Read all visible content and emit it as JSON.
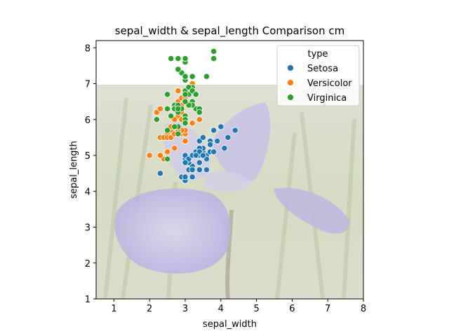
{
  "chart_data": {
    "type": "scatter",
    "title": "sepal_width & sepal_length Comparison cm",
    "xlabel": "sepal_width",
    "ylabel": "sepal_length",
    "xlim": [
      0.5,
      8
    ],
    "ylim": [
      1,
      8.2
    ],
    "xticks": [
      "1",
      "2",
      "3",
      "4",
      "5",
      "6",
      "7",
      "8"
    ],
    "yticks": [
      "1",
      "2",
      "3",
      "4",
      "5",
      "6",
      "7",
      "8"
    ],
    "grid": false,
    "background_image": "iris-flower-photo",
    "legend": {
      "title": "type",
      "placement": "top-right"
    },
    "series": [
      {
        "name": "Setosa",
        "color": "#1f77b4",
        "points": [
          [
            3.5,
            5.1
          ],
          [
            3.0,
            4.9
          ],
          [
            3.2,
            4.7
          ],
          [
            3.1,
            4.6
          ],
          [
            3.6,
            5.0
          ],
          [
            3.9,
            5.4
          ],
          [
            3.4,
            4.6
          ],
          [
            3.4,
            5.0
          ],
          [
            2.9,
            4.4
          ],
          [
            3.1,
            4.9
          ],
          [
            3.7,
            5.4
          ],
          [
            3.4,
            4.8
          ],
          [
            3.0,
            4.8
          ],
          [
            3.0,
            4.3
          ],
          [
            4.0,
            5.8
          ],
          [
            4.4,
            5.7
          ],
          [
            3.9,
            5.4
          ],
          [
            3.5,
            5.1
          ],
          [
            3.8,
            5.7
          ],
          [
            3.8,
            5.1
          ],
          [
            3.4,
            5.4
          ],
          [
            3.7,
            5.1
          ],
          [
            3.6,
            4.6
          ],
          [
            3.3,
            5.1
          ],
          [
            3.4,
            4.8
          ],
          [
            3.0,
            5.0
          ],
          [
            3.4,
            5.0
          ],
          [
            3.5,
            5.2
          ],
          [
            3.4,
            5.2
          ],
          [
            3.2,
            4.7
          ],
          [
            3.1,
            4.8
          ],
          [
            3.4,
            5.4
          ],
          [
            4.1,
            5.2
          ],
          [
            4.2,
            5.5
          ],
          [
            3.1,
            4.9
          ],
          [
            3.2,
            5.0
          ],
          [
            3.5,
            5.5
          ],
          [
            3.6,
            4.9
          ],
          [
            3.0,
            4.4
          ],
          [
            3.4,
            5.1
          ],
          [
            3.5,
            5.0
          ],
          [
            2.3,
            4.5
          ],
          [
            3.2,
            4.4
          ],
          [
            3.5,
            5.0
          ],
          [
            3.8,
            5.1
          ],
          [
            3.0,
            4.8
          ],
          [
            3.8,
            5.1
          ],
          [
            3.2,
            4.6
          ],
          [
            3.7,
            5.3
          ],
          [
            3.3,
            5.0
          ]
        ]
      },
      {
        "name": "Versicolor",
        "color": "#ff7f0e",
        "points": [
          [
            3.2,
            7.0
          ],
          [
            3.2,
            6.4
          ],
          [
            3.1,
            6.9
          ],
          [
            2.3,
            5.5
          ],
          [
            2.8,
            6.5
          ],
          [
            2.8,
            5.7
          ],
          [
            3.3,
            6.3
          ],
          [
            2.4,
            4.9
          ],
          [
            2.9,
            6.6
          ],
          [
            2.7,
            5.2
          ],
          [
            2.0,
            5.0
          ],
          [
            3.0,
            5.9
          ],
          [
            2.2,
            6.0
          ],
          [
            2.9,
            6.1
          ],
          [
            2.9,
            5.6
          ],
          [
            3.1,
            6.7
          ],
          [
            3.0,
            5.6
          ],
          [
            2.7,
            5.8
          ],
          [
            2.2,
            6.2
          ],
          [
            2.5,
            5.6
          ],
          [
            3.2,
            5.9
          ],
          [
            2.8,
            6.1
          ],
          [
            2.5,
            6.3
          ],
          [
            2.8,
            6.1
          ],
          [
            2.9,
            6.4
          ],
          [
            3.0,
            6.6
          ],
          [
            2.8,
            6.8
          ],
          [
            3.0,
            6.7
          ],
          [
            2.9,
            6.0
          ],
          [
            2.6,
            5.7
          ],
          [
            2.4,
            5.5
          ],
          [
            2.4,
            5.5
          ],
          [
            2.7,
            5.8
          ],
          [
            2.7,
            6.0
          ],
          [
            3.0,
            5.4
          ],
          [
            3.4,
            6.0
          ],
          [
            3.1,
            6.7
          ],
          [
            2.3,
            6.3
          ],
          [
            3.0,
            5.6
          ],
          [
            2.5,
            5.5
          ],
          [
            2.6,
            5.5
          ],
          [
            3.0,
            6.1
          ],
          [
            2.6,
            5.8
          ],
          [
            2.3,
            5.0
          ],
          [
            2.7,
            5.6
          ],
          [
            3.0,
            5.7
          ],
          [
            2.9,
            5.7
          ],
          [
            2.9,
            6.2
          ],
          [
            2.5,
            5.1
          ],
          [
            2.8,
            5.7
          ]
        ]
      },
      {
        "name": "Virginica",
        "color": "#2ca02c",
        "points": [
          [
            3.3,
            6.3
          ],
          [
            2.7,
            5.8
          ],
          [
            3.0,
            7.1
          ],
          [
            2.9,
            6.3
          ],
          [
            3.0,
            6.5
          ],
          [
            3.0,
            7.6
          ],
          [
            2.5,
            4.9
          ],
          [
            2.9,
            7.3
          ],
          [
            2.5,
            6.7
          ],
          [
            3.6,
            7.2
          ],
          [
            3.2,
            6.5
          ],
          [
            2.7,
            6.4
          ],
          [
            3.0,
            6.8
          ],
          [
            2.5,
            5.7
          ],
          [
            2.8,
            5.8
          ],
          [
            3.2,
            6.4
          ],
          [
            3.0,
            6.5
          ],
          [
            3.8,
            7.7
          ],
          [
            2.6,
            7.7
          ],
          [
            2.2,
            6.0
          ],
          [
            3.2,
            6.9
          ],
          [
            2.8,
            5.6
          ],
          [
            2.8,
            7.7
          ],
          [
            2.7,
            6.3
          ],
          [
            3.3,
            6.7
          ],
          [
            3.2,
            7.2
          ],
          [
            2.8,
            6.2
          ],
          [
            3.0,
            6.1
          ],
          [
            2.8,
            6.4
          ],
          [
            3.0,
            7.2
          ],
          [
            2.8,
            7.4
          ],
          [
            3.8,
            7.9
          ],
          [
            2.8,
            6.4
          ],
          [
            2.8,
            6.3
          ],
          [
            2.6,
            6.1
          ],
          [
            3.0,
            7.7
          ],
          [
            3.4,
            6.3
          ],
          [
            3.1,
            6.4
          ],
          [
            3.0,
            6.0
          ],
          [
            3.1,
            6.9
          ],
          [
            3.1,
            6.7
          ],
          [
            3.1,
            6.9
          ],
          [
            2.7,
            5.8
          ],
          [
            3.2,
            6.8
          ],
          [
            3.3,
            6.7
          ],
          [
            3.0,
            6.7
          ],
          [
            2.5,
            6.3
          ],
          [
            3.0,
            6.5
          ],
          [
            3.4,
            6.2
          ],
          [
            3.0,
            5.9
          ]
        ]
      }
    ]
  }
}
